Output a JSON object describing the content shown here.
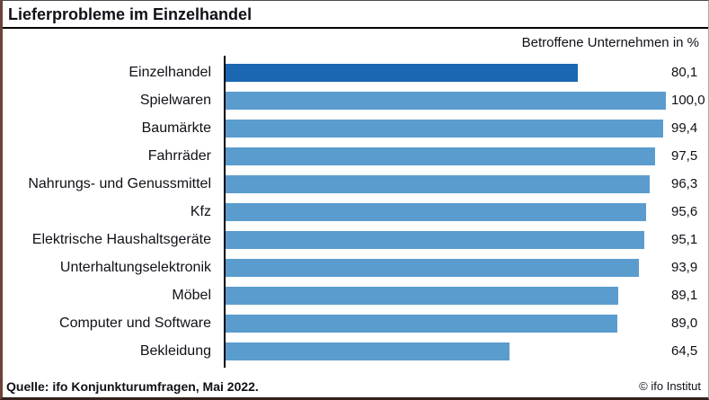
{
  "header": {
    "title": "Lieferprobleme im Einzelhandel",
    "subtitle": "Betroffene Unternehmen in %"
  },
  "footer": {
    "source": "Quelle: ifo Konjunkturumfragen, Mai 2022.",
    "copyright": "© ifo Institut"
  },
  "colors": {
    "highlight_bar": "#1b67b1",
    "default_bar": "#5b9cce",
    "axis": "#000000"
  },
  "chart_data": {
    "type": "bar",
    "orientation": "horizontal",
    "title": "Lieferprobleme im Einzelhandel",
    "xlabel": "Betroffene Unternehmen in %",
    "ylabel": "",
    "xlim": [
      0,
      100
    ],
    "grid": false,
    "legend": false,
    "highlight_index": 0,
    "categories": [
      "Einzelhandel",
      "Spielwaren",
      "Baumärkte",
      "Fahrräder",
      "Nahrungs- und Genussmittel",
      "Kfz",
      "Elektrische Haushaltsgeräte",
      "Unterhaltungselektronik",
      "Möbel",
      "Computer und Software",
      "Bekleidung"
    ],
    "values": [
      80.1,
      100.0,
      99.4,
      97.5,
      96.3,
      95.6,
      95.1,
      93.9,
      89.1,
      89.0,
      64.5
    ],
    "value_labels": [
      "80,1",
      "100,0",
      "99,4",
      "97,5",
      "96,3",
      "95,6",
      "95,1",
      "93,9",
      "89,1",
      "89,0",
      "64,5"
    ]
  }
}
